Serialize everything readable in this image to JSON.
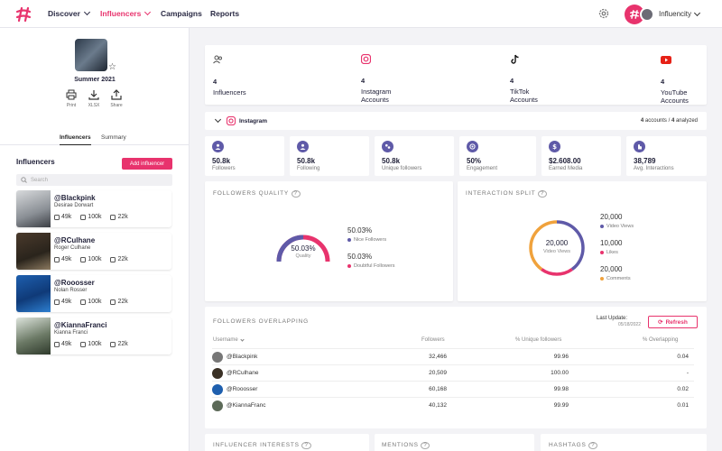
{
  "nav": {
    "items": [
      {
        "label": "Discover",
        "dropdown": true
      },
      {
        "label": "Influencers",
        "dropdown": true,
        "active": true
      },
      {
        "label": "Campaigns",
        "dropdown": false
      },
      {
        "label": "Reports",
        "dropdown": false
      }
    ],
    "user": "Influencity"
  },
  "sidebar": {
    "campaign_name": "Summer 2021",
    "actions": [
      {
        "label": "Print"
      },
      {
        "label": "XLSX"
      },
      {
        "label": "Share"
      }
    ],
    "tabs": [
      {
        "label": "Influencers",
        "active": true
      },
      {
        "label": "Summary",
        "active": false
      }
    ],
    "influencers_title": "Influencers",
    "add_button": "Add influencer",
    "search_placeholder": "Search",
    "influencers": [
      {
        "handle": "@Blackpink",
        "name": "Desirae Dorwart",
        "instagram": "49k",
        "tiktok": "100k",
        "youtube": "22k"
      },
      {
        "handle": "@RCulhane",
        "name": "Roger Culhane",
        "instagram": "49k",
        "tiktok": "100k",
        "youtube": "22k"
      },
      {
        "handle": "@Rooosser",
        "name": "Nolan Rosser",
        "instagram": "49k",
        "tiktok": "100k",
        "youtube": "22k"
      },
      {
        "handle": "@KiannaFranci",
        "name": "Kianna Franci",
        "instagram": "49k",
        "tiktok": "100k",
        "youtube": "22k"
      }
    ]
  },
  "summary": [
    {
      "icon": "users-icon",
      "count": "4",
      "label": "Influencers"
    },
    {
      "icon": "instagram-icon",
      "count": "4",
      "label": "Instagram Accounts"
    },
    {
      "icon": "tiktok-icon",
      "count": "4",
      "label": "TikTok Accounts"
    },
    {
      "icon": "youtube-icon",
      "count": "4",
      "label": "YouTube Accounts"
    }
  ],
  "network": {
    "name": "Instagram",
    "accounts": "4",
    "accounts_label": "accounts /",
    "analyzed": "4",
    "analyzed_label": "analyzed"
  },
  "stats": [
    {
      "value": "50.8k",
      "label": "Followers"
    },
    {
      "value": "50.8k",
      "label": "Following"
    },
    {
      "value": "50.8k",
      "label": "Unique followers"
    },
    {
      "value": "50%",
      "label": "Engagement"
    },
    {
      "value": "$2.608.00",
      "label": "Earned Media"
    },
    {
      "value": "38,789",
      "label": "Avg. Interactions"
    }
  ],
  "followers_quality": {
    "title": "FOLLOWERS QUALITY",
    "center_value": "50.03%",
    "center_label": "Quality",
    "fraction": 0.5003,
    "items": [
      {
        "value": "50.03%",
        "label": "Nice Followers",
        "color": "#5f5aa8"
      },
      {
        "value": "50.03%",
        "label": "Doubtful Followers",
        "color": "#e8336d"
      }
    ]
  },
  "interaction_split": {
    "title": "INTERACTION SPLIT",
    "center_value": "20,000",
    "center_label": "Video Views",
    "items": [
      {
        "value": "20,000",
        "label": "Video Views",
        "color": "#5f5aa8"
      },
      {
        "value": "10,000",
        "label": "Likes",
        "color": "#e8336d"
      },
      {
        "value": "20,000",
        "label": "Comments",
        "color": "#f0a23c"
      }
    ]
  },
  "overlap": {
    "title": "FOLLOWERS OVERLAPPING",
    "last_update_label": "Last Update:",
    "last_update": "05/18/2022",
    "refresh": "Refresh",
    "columns": [
      "Username",
      "Followers",
      "% Unique followers",
      "% Overlapping"
    ],
    "rows": [
      {
        "user": "@Blackpink",
        "followers": "32,466",
        "unique": "99.96",
        "overlap": "0.04"
      },
      {
        "user": "@RCulhane",
        "followers": "20,509",
        "unique": "100.00",
        "overlap": "-"
      },
      {
        "user": "@Rooosser",
        "followers": "60,168",
        "unique": "99.98",
        "overlap": "0.02"
      },
      {
        "user": "@KiannaFranc",
        "followers": "40,132",
        "unique": "99.99",
        "overlap": "0.01"
      }
    ]
  },
  "bottom": [
    "INFLUENCER INTERESTS",
    "MENTIONS",
    "HASHTAGS"
  ],
  "colors": {
    "accent": "#e8336d",
    "primary": "#5f5aa8",
    "orange": "#f0a23c"
  }
}
